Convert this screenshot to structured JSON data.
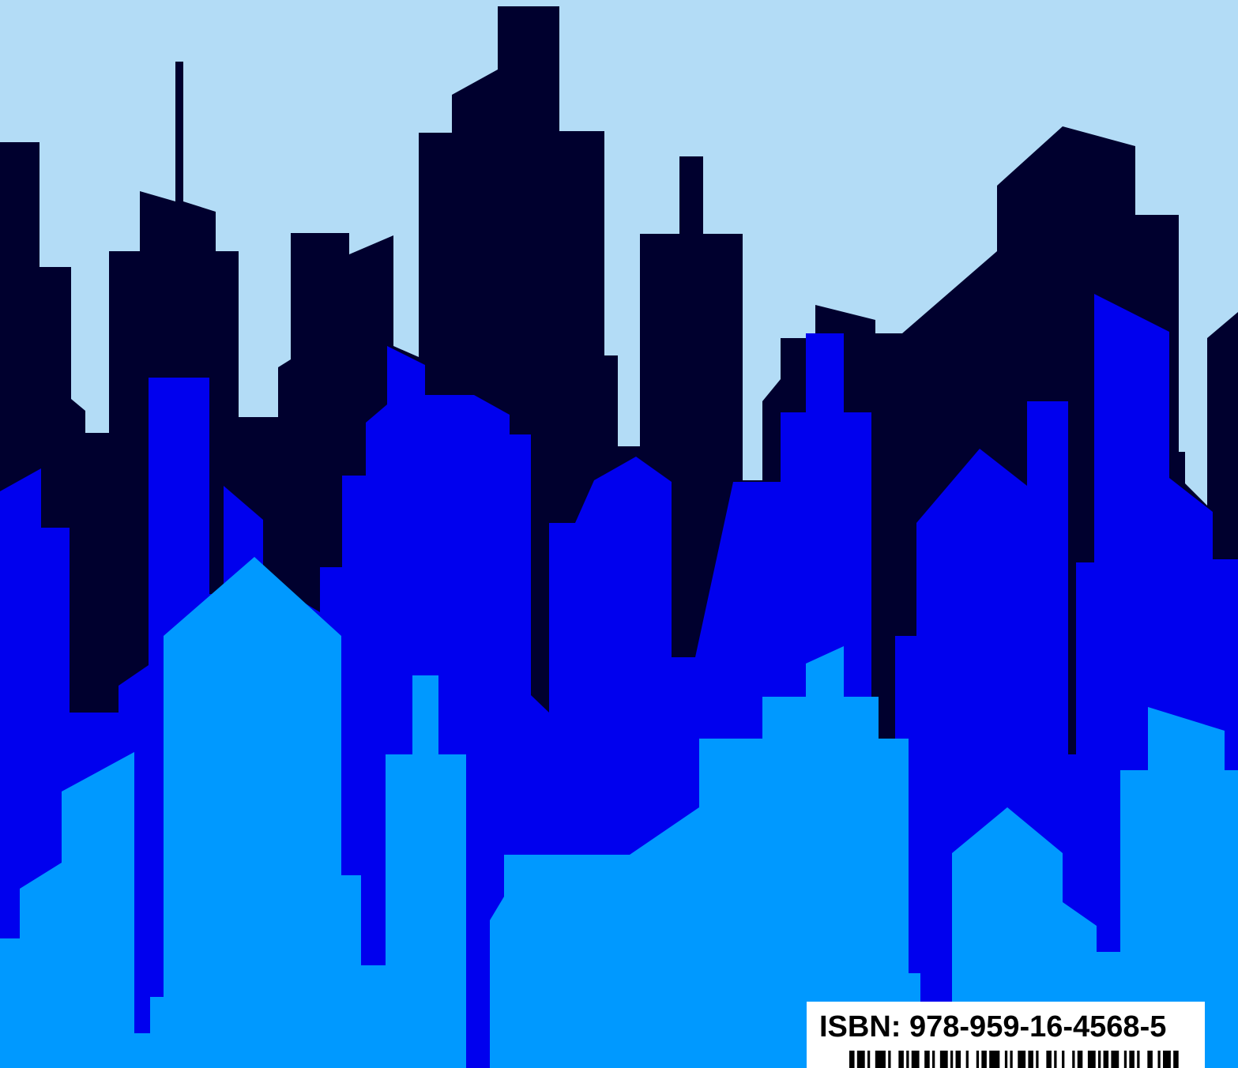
{
  "colors": {
    "sky": "#b3dcf6",
    "back_buildings": "#00002e",
    "middle_buildings": "#0000ee",
    "front_buildings": "#0099ff",
    "label_background": "#ffffff",
    "label_text": "#000000"
  },
  "isbn": {
    "label": "ISBN: 978-959-16-4568-5"
  },
  "barcode": {
    "pattern": [
      2,
      1,
      3,
      1,
      1,
      2,
      4,
      1,
      1,
      3,
      2,
      1,
      1,
      1,
      3,
      2,
      2,
      1,
      1,
      2,
      3,
      1,
      1,
      1,
      2,
      2,
      1,
      3,
      1,
      1,
      2,
      1,
      4,
      2,
      1,
      1,
      1,
      2,
      3,
      1,
      2,
      1,
      1,
      3,
      2,
      1,
      1,
      2,
      1,
      3,
      1,
      1,
      2,
      2,
      3,
      1,
      1,
      1,
      2,
      1,
      3,
      2,
      1,
      1,
      2,
      1,
      1,
      3,
      2,
      2,
      1,
      1,
      3,
      1,
      2,
      1
    ]
  }
}
